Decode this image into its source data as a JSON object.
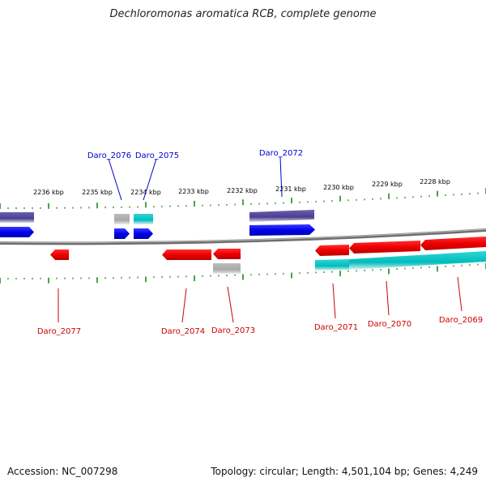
{
  "title": "Dechloromonas aromatica RCB, complete genome",
  "footer": {
    "accession": "Accession: NC_007298",
    "summary": "Topology: circular; Length: 4,501,104 bp; Genes: 4,249"
  },
  "colors": {
    "forward_label": "#0000cc",
    "reverse_label": "#cc0000",
    "tick": "#007700",
    "backbone": "#8a8a8a"
  },
  "scale_labels": [
    "2236 kbp",
    "2235 kbp",
    "2234 kbp",
    "2233 kbp",
    "2232 kbp",
    "2231 kbp",
    "2230 kbp",
    "2229 kbp",
    "2228 kbp"
  ],
  "forward_genes": [
    "Daro_2076",
    "Daro_2075",
    "Daro_2072"
  ],
  "reverse_genes": [
    "Daro_2077",
    "Daro_2074",
    "Daro_2073",
    "Daro_2071",
    "Daro_2070",
    "Daro_2069"
  ]
}
